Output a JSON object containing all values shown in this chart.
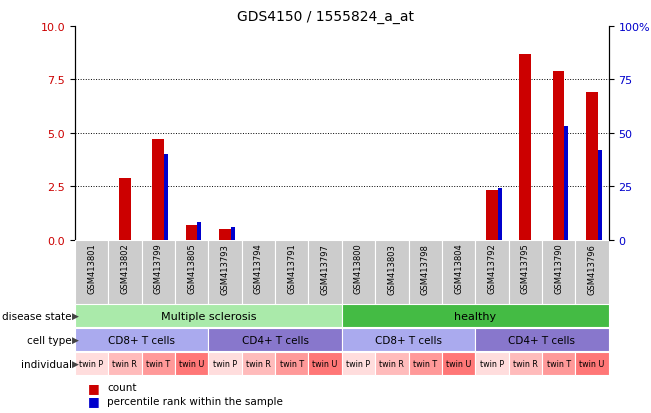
{
  "title": "GDS4150 / 1555824_a_at",
  "samples": [
    "GSM413801",
    "GSM413802",
    "GSM413799",
    "GSM413805",
    "GSM413793",
    "GSM413794",
    "GSM413791",
    "GSM413797",
    "GSM413800",
    "GSM413803",
    "GSM413798",
    "GSM413804",
    "GSM413792",
    "GSM413795",
    "GSM413790",
    "GSM413796"
  ],
  "count_values": [
    0.0,
    2.9,
    4.7,
    0.7,
    0.5,
    0.0,
    0.0,
    0.0,
    0.0,
    0.0,
    0.0,
    0.0,
    2.3,
    8.7,
    7.9,
    6.9
  ],
  "percentile_values": [
    0,
    0,
    40,
    8,
    6,
    0,
    0,
    0,
    0,
    0,
    0,
    0,
    24,
    0,
    53,
    42
  ],
  "ylim_left": [
    0,
    10
  ],
  "ylim_right": [
    0,
    100
  ],
  "yticks_left": [
    0,
    2.5,
    5.0,
    7.5,
    10
  ],
  "yticks_right": [
    0,
    25,
    50,
    75,
    100
  ],
  "disease_state": [
    {
      "label": "Multiple sclerosis",
      "start": 0,
      "end": 8,
      "color": "#AAEAAA"
    },
    {
      "label": "healthy",
      "start": 8,
      "end": 16,
      "color": "#44BB44"
    }
  ],
  "cell_type": [
    {
      "label": "CD8+ T cells",
      "start": 0,
      "end": 4,
      "color": "#AAAAEE"
    },
    {
      "label": "CD4+ T cells",
      "start": 4,
      "end": 8,
      "color": "#8877CC"
    },
    {
      "label": "CD8+ T cells",
      "start": 8,
      "end": 12,
      "color": "#AAAAEE"
    },
    {
      "label": "CD4+ T cells",
      "start": 12,
      "end": 16,
      "color": "#8877CC"
    }
  ],
  "individual": [
    {
      "label": "twin P",
      "idx": 0,
      "color": "#FFDDDD"
    },
    {
      "label": "twin R",
      "idx": 1,
      "color": "#FFBBBB"
    },
    {
      "label": "twin T",
      "idx": 2,
      "color": "#FF9999"
    },
    {
      "label": "twin U",
      "idx": 3,
      "color": "#FF7777"
    },
    {
      "label": "twin P",
      "idx": 4,
      "color": "#FFDDDD"
    },
    {
      "label": "twin R",
      "idx": 5,
      "color": "#FFBBBB"
    },
    {
      "label": "twin T",
      "idx": 6,
      "color": "#FF9999"
    },
    {
      "label": "twin U",
      "idx": 7,
      "color": "#FF7777"
    },
    {
      "label": "twin P",
      "idx": 8,
      "color": "#FFDDDD"
    },
    {
      "label": "twin R",
      "idx": 9,
      "color": "#FFBBBB"
    },
    {
      "label": "twin T",
      "idx": 10,
      "color": "#FF9999"
    },
    {
      "label": "twin U",
      "idx": 11,
      "color": "#FF7777"
    },
    {
      "label": "twin P",
      "idx": 12,
      "color": "#FFDDDD"
    },
    {
      "label": "twin R",
      "idx": 13,
      "color": "#FFBBBB"
    },
    {
      "label": "twin T",
      "idx": 14,
      "color": "#FF9999"
    },
    {
      "label": "twin U",
      "idx": 15,
      "color": "#FF7777"
    }
  ],
  "bar_color_red": "#CC0000",
  "bar_color_blue": "#0000CC",
  "bar_width": 0.35,
  "blue_bar_width": 0.12,
  "background_color": "#FFFFFF",
  "tick_label_color_left": "#CC0000",
  "tick_label_color_right": "#0000CC",
  "sample_bg_color": "#CCCCCC",
  "gap_color": "#FFFFFF"
}
